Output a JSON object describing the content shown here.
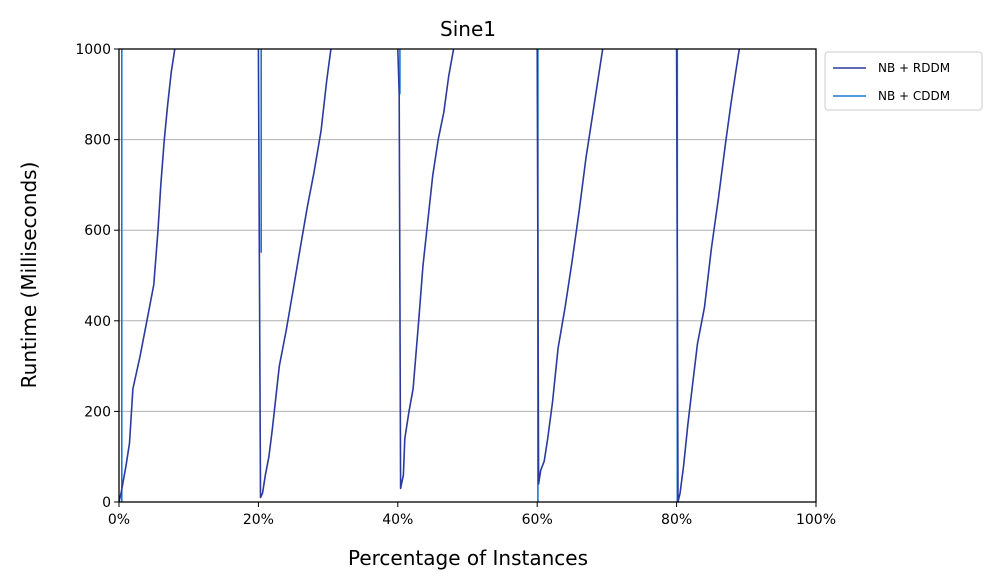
{
  "chart_data": {
    "type": "line",
    "title": "Sine1",
    "xlabel": "Percentage of Instances",
    "ylabel": "Runtime (Milliseconds)",
    "xlim": [
      0,
      100
    ],
    "ylim": [
      0,
      1000
    ],
    "x_ticks": [
      0,
      20,
      40,
      60,
      80,
      100
    ],
    "x_tick_labels": [
      "0%",
      "20%",
      "40%",
      "60%",
      "80%",
      "100%"
    ],
    "y_ticks": [
      0,
      200,
      400,
      600,
      800,
      1000
    ],
    "y_tick_labels": [
      "0",
      "200",
      "400",
      "600",
      "800",
      "1000"
    ],
    "grid": "horizontal",
    "legend_position": "outside-top-right",
    "series": [
      {
        "name": "NB + RDDM",
        "color": "#2b3a9e",
        "segments": [
          {
            "x": [
              0.0,
              0.3,
              1.0,
              1.5,
              2.0,
              3.0,
              4.0,
              5.0,
              5.6,
              6.0,
              6.5,
              7.0,
              7.5,
              8.0
            ],
            "y": [
              0,
              20,
              80,
              130,
              250,
              320,
              400,
              480,
              600,
              700,
              800,
              880,
              950,
              1000
            ]
          },
          {
            "x": [
              20.0,
              20.3,
              20.6,
              21.0,
              21.5,
              22.0,
              23.0,
              24.0,
              25.0,
              26.0,
              27.0,
              28.0,
              29.0,
              29.8,
              30.4
            ],
            "y": [
              1000,
              10,
              20,
              60,
              100,
              160,
              300,
              380,
              470,
              560,
              650,
              730,
              820,
              930,
              1000
            ]
          },
          {
            "x": [
              40.0,
              40.2,
              40.4,
              40.8,
              41.0,
              41.6,
              42.2,
              43.0,
              43.6,
              44.3,
              45.0,
              45.8,
              46.6,
              47.3,
              48.0
            ],
            "y": [
              1000,
              900,
              30,
              60,
              140,
              200,
              250,
              400,
              520,
              620,
              720,
              800,
              860,
              940,
              1000
            ]
          },
          {
            "x": [
              60.0,
              60.2,
              60.5,
              61.0,
              61.5,
              62.2,
              63.0,
              64.0,
              65.0,
              66.0,
              67.0,
              68.0,
              68.8,
              69.4
            ],
            "y": [
              1000,
              40,
              70,
              90,
              140,
              220,
              340,
              430,
              530,
              640,
              760,
              860,
              940,
              1000
            ]
          },
          {
            "x": [
              80.0,
              80.2,
              80.5,
              81.0,
              81.6,
              82.3,
              83.0,
              84.0,
              85.0,
              86.0,
              87.0,
              87.8,
              88.4,
              89.0
            ],
            "y": [
              1000,
              0,
              20,
              80,
              170,
              260,
              350,
              430,
              560,
              670,
              790,
              880,
              940,
              1000
            ]
          }
        ]
      },
      {
        "name": "NB + CDDM",
        "color": "#1f77d0",
        "segments": [
          {
            "x": [
              0.4,
              0.4
            ],
            "y": [
              0,
              1000
            ]
          },
          {
            "x": [
              20.4,
              20.4
            ],
            "y": [
              550,
              1000
            ]
          },
          {
            "x": [
              40.3,
              40.3
            ],
            "y": [
              900,
              1000
            ]
          },
          {
            "x": [
              60.1,
              60.1
            ],
            "y": [
              0,
              1000
            ]
          },
          {
            "x": [
              80.1,
              80.1
            ],
            "y": [
              0,
              1000
            ]
          }
        ]
      }
    ]
  }
}
